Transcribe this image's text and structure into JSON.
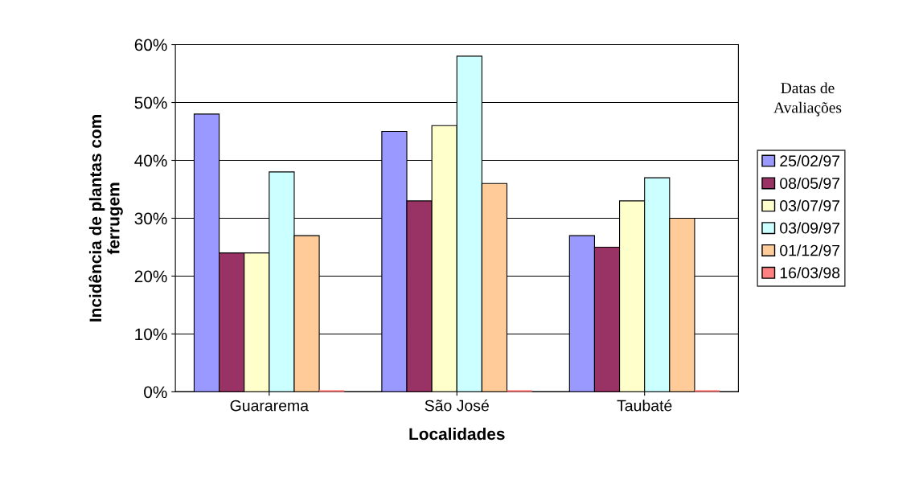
{
  "chart_data": {
    "type": "bar",
    "xlabel": "Localidades",
    "ylabel": "Incidência de plantas com\nferrugem",
    "legend_title": "Datas de\nAvaliações",
    "categories": [
      "Guararema",
      "São José",
      "Taubaté"
    ],
    "series": [
      {
        "name": "25/02/97",
        "color": "#9999ff",
        "values": [
          48,
          45,
          27
        ]
      },
      {
        "name": "08/05/97",
        "color": "#993366",
        "values": [
          24,
          33,
          25
        ]
      },
      {
        "name": "03/07/97",
        "color": "#ffffcc",
        "values": [
          24,
          46,
          33
        ]
      },
      {
        "name": "03/09/97",
        "color": "#ccffff",
        "values": [
          38,
          58,
          37
        ]
      },
      {
        "name": "01/12/97",
        "color": "#ffcc99",
        "values": [
          27,
          36,
          30
        ]
      },
      {
        "name": "16/03/98",
        "color": "#ff8080",
        "values": [
          0,
          0,
          0
        ]
      }
    ],
    "ylim": [
      0,
      60
    ],
    "yticks": [
      {
        "value": 0,
        "label": "0%"
      },
      {
        "value": 10,
        "label": "10%"
      },
      {
        "value": 20,
        "label": "20%"
      },
      {
        "value": 30,
        "label": "30%"
      },
      {
        "value": 40,
        "label": "40%"
      },
      {
        "value": 50,
        "label": "50%"
      },
      {
        "value": 60,
        "label": "60%"
      }
    ],
    "grid": "y",
    "legend": "right"
  }
}
